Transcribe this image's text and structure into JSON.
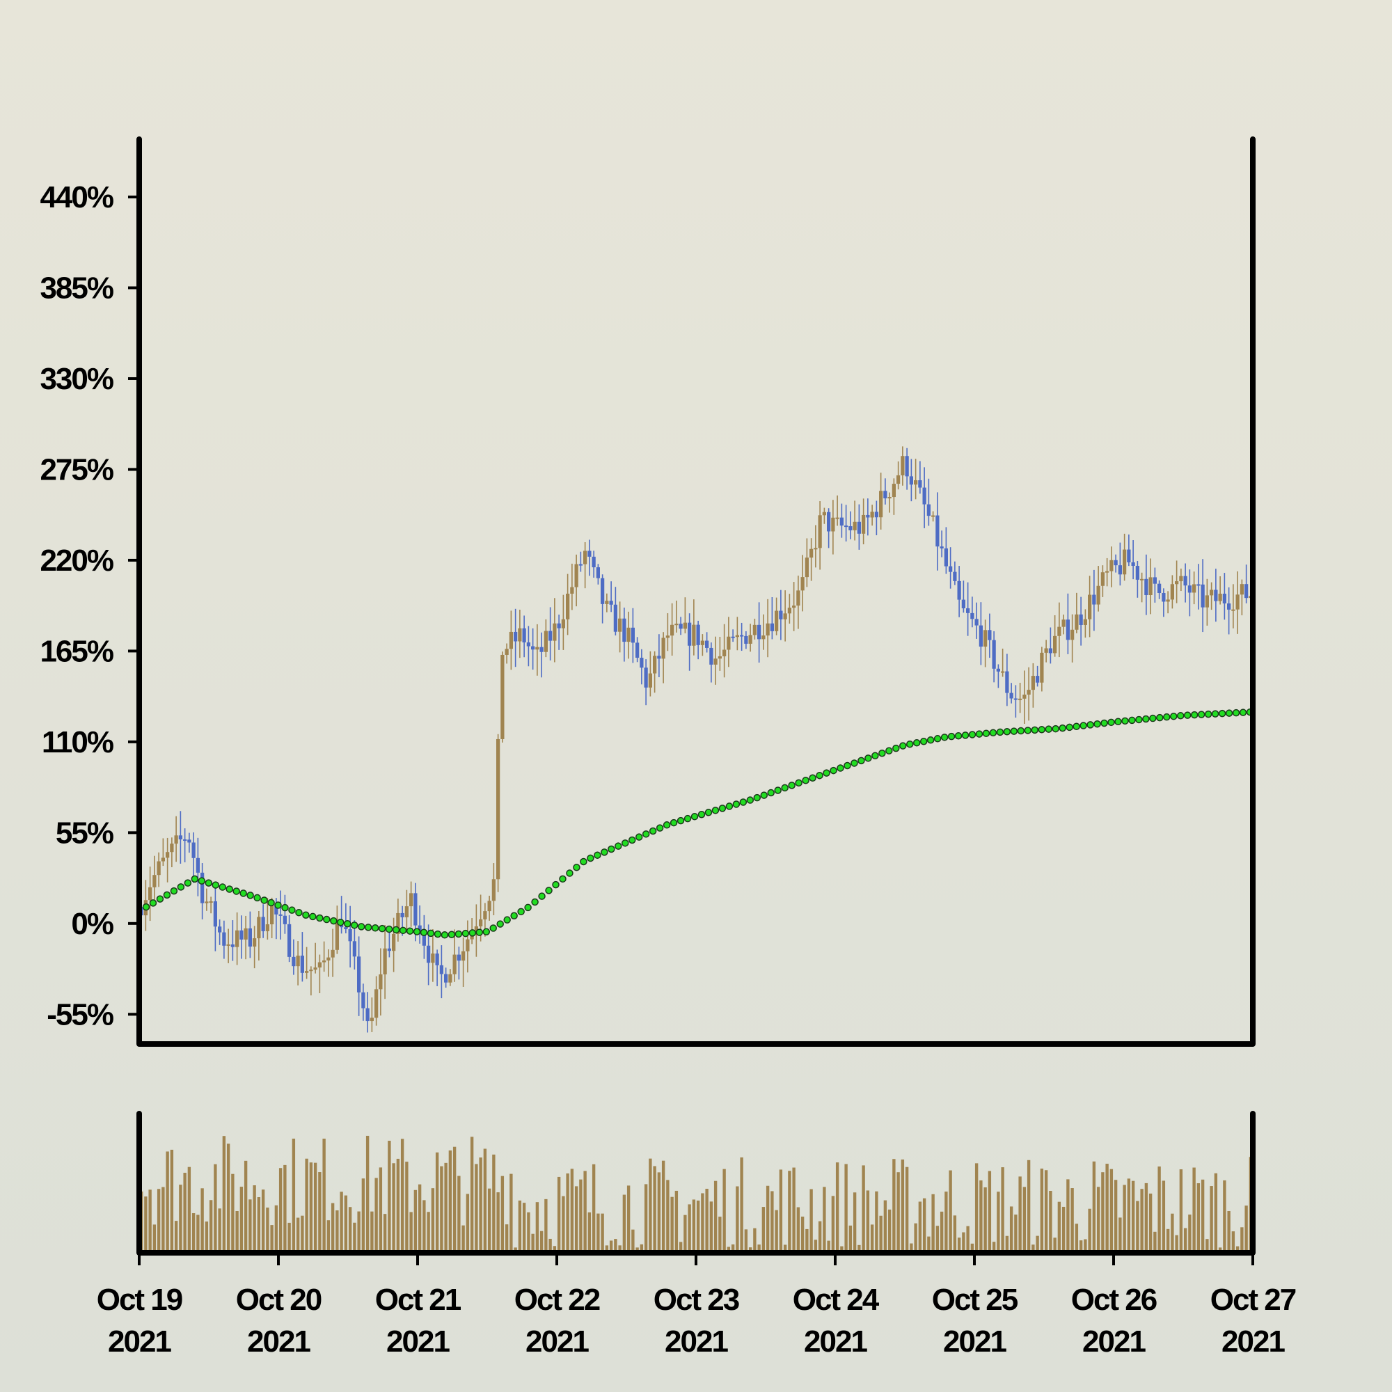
{
  "colors": {
    "background_top": "#e7e5d9",
    "background_bottom": "#dde0d7",
    "up_candle": "#a08450",
    "down_candle": "#4e6cc4",
    "volume": "#a08450",
    "moving_average": "#22dd22",
    "axes": "#000000"
  },
  "chart_data": {
    "type": "candlestick",
    "title": "",
    "xlabel": "",
    "ylabel": "",
    "y_unit": "%",
    "ylim": [
      -73,
      475
    ],
    "y_ticks": [
      -55,
      0,
      55,
      110,
      165,
      220,
      275,
      330,
      385,
      440
    ],
    "y_tick_labels": [
      "-55%",
      "0%",
      "55%",
      "110%",
      "165%",
      "220%",
      "275%",
      "330%",
      "385%",
      "440%"
    ],
    "x_range": [
      "2021-10-19",
      "2021-10-27"
    ],
    "x_ticks": [
      {
        "line1": "Oct 19",
        "line2": "2021"
      },
      {
        "line1": "Oct 20",
        "line2": "2021"
      },
      {
        "line1": "Oct 21",
        "line2": "2021"
      },
      {
        "line1": "Oct 22",
        "line2": "2021"
      },
      {
        "line1": "Oct 23",
        "line2": "2021"
      },
      {
        "line1": "Oct 24",
        "line2": "2021"
      },
      {
        "line1": "Oct 25",
        "line2": "2021"
      },
      {
        "line1": "Oct 26",
        "line2": "2021"
      },
      {
        "line1": "Oct 27",
        "line2": "2021"
      }
    ],
    "candles_per_day": 32,
    "close_path": [
      [
        0,
        10
      ],
      [
        0.08,
        25
      ],
      [
        0.2,
        40
      ],
      [
        0.35,
        55
      ],
      [
        0.45,
        20
      ],
      [
        0.6,
        -10
      ],
      [
        0.8,
        -10
      ],
      [
        0.95,
        10
      ],
      [
        1.15,
        -25
      ],
      [
        1.3,
        -30
      ],
      [
        1.45,
        5
      ],
      [
        1.6,
        -45
      ],
      [
        1.65,
        -70
      ],
      [
        1.75,
        -20
      ],
      [
        1.95,
        15
      ],
      [
        2.15,
        -35
      ],
      [
        2.35,
        -10
      ],
      [
        2.55,
        25
      ],
      [
        2.6,
        165
      ],
      [
        2.75,
        175
      ],
      [
        2.85,
        160
      ],
      [
        3.0,
        180
      ],
      [
        3.2,
        225
      ],
      [
        3.35,
        190
      ],
      [
        3.5,
        175
      ],
      [
        3.65,
        145
      ],
      [
        3.8,
        175
      ],
      [
        4.0,
        175
      ],
      [
        4.15,
        160
      ],
      [
        4.35,
        175
      ],
      [
        4.55,
        185
      ],
      [
        4.75,
        200
      ],
      [
        4.9,
        245
      ],
      [
        5.0,
        240
      ],
      [
        5.2,
        240
      ],
      [
        5.4,
        265
      ],
      [
        5.5,
        280
      ],
      [
        5.7,
        240
      ],
      [
        5.9,
        190
      ],
      [
        6.05,
        175
      ],
      [
        6.25,
        140
      ],
      [
        6.35,
        135
      ],
      [
        6.55,
        170
      ],
      [
        6.75,
        185
      ],
      [
        6.95,
        210
      ],
      [
        7.1,
        220
      ],
      [
        7.3,
        200
      ],
      [
        7.5,
        205
      ],
      [
        7.65,
        195
      ],
      [
        8.0,
        200
      ]
    ],
    "moving_average": [
      [
        0.05,
        10
      ],
      [
        0.4,
        27
      ],
      [
        0.8,
        17
      ],
      [
        1.2,
        5
      ],
      [
        1.6,
        -2
      ],
      [
        2.0,
        -5
      ],
      [
        2.2,
        -7
      ],
      [
        2.5,
        -5
      ],
      [
        2.8,
        10
      ],
      [
        3.2,
        38
      ],
      [
        3.8,
        60
      ],
      [
        4.4,
        75
      ],
      [
        5.0,
        93
      ],
      [
        5.5,
        108
      ],
      [
        5.8,
        113
      ],
      [
        6.2,
        116
      ],
      [
        6.6,
        118
      ],
      [
        7.0,
        122
      ],
      [
        7.5,
        126
      ],
      [
        7.98,
        128
      ]
    ],
    "volume_note": "relative volume bars, no printed axis"
  }
}
